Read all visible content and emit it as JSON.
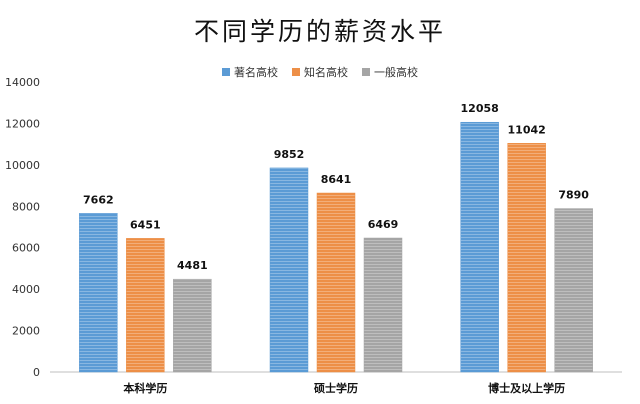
{
  "chart_data": {
    "type": "bar",
    "title": "不同学历的薪资水平",
    "categories": [
      "本科学历",
      "硕士学历",
      "博士及以上学历"
    ],
    "series": [
      {
        "name": "著名高校",
        "color": "#5b9bd5",
        "values": [
          7662,
          9852,
          12058
        ]
      },
      {
        "name": "知名高校",
        "color": "#ed8f47",
        "values": [
          6451,
          8641,
          11042
        ]
      },
      {
        "name": "一般高校",
        "color": "#a5a5a5",
        "values": [
          4481,
          6469,
          7890
        ]
      }
    ],
    "ylim": [
      0,
      14000
    ],
    "yticks": [
      0,
      2000,
      4000,
      6000,
      8000,
      10000,
      12000,
      14000
    ],
    "legend_position": "top-center",
    "grid": false,
    "data_labels": true
  }
}
